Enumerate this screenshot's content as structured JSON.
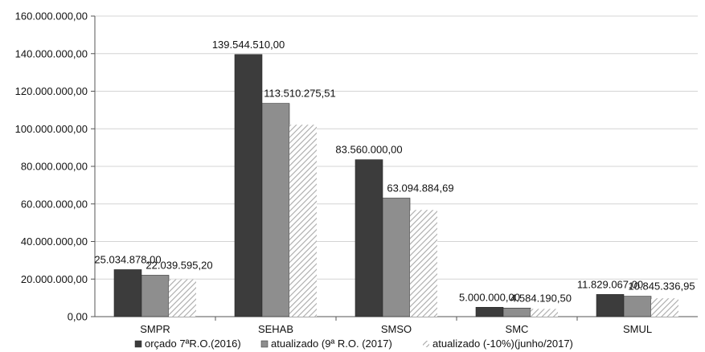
{
  "chart_data": {
    "type": "bar",
    "categories": [
      "SMPR",
      "SEHAB",
      "SMSO",
      "SMC",
      "SMUL"
    ],
    "series": [
      {
        "name": "orçado 7ªR.O.(2016)",
        "values": [
          25034878.0,
          139544510.0,
          83560000.0,
          5000000.0,
          11829067.0
        ],
        "color": "#3c3c3c",
        "pattern": "solid"
      },
      {
        "name": "atualizado (9ª R.O. (2017)",
        "values": [
          22039595.2,
          113510275.51,
          63094884.69,
          4584190.5,
          10845336.95
        ],
        "color": "#8e8e8e",
        "pattern": "solid"
      },
      {
        "name": "atualizado (-10%)(junho/2017)",
        "values": [
          19835635.68,
          102159247.96,
          56785396.22,
          4125771.45,
          9760803.26
        ],
        "color": "#bdbdbd",
        "pattern": "hatched"
      }
    ],
    "data_labels": [
      [
        "25.034.878,00",
        "22.039.595,20",
        ""
      ],
      [
        "139.544.510,00",
        "113.510.275,51",
        ""
      ],
      [
        "83.560.000,00",
        "63.094.884,69",
        ""
      ],
      [
        "5.000.000,00",
        "4.584.190,50",
        ""
      ],
      [
        "11.829.067,00",
        "10.845.336,95",
        ""
      ]
    ],
    "ylim": [
      0,
      160000000
    ],
    "yticks": [
      0,
      20000000,
      40000000,
      60000000,
      80000000,
      100000000,
      120000000,
      140000000,
      160000000
    ],
    "ytick_labels": [
      "0,00",
      "20.000.000,00",
      "40.000.000,00",
      "60.000.000,00",
      "80.000.000,00",
      "100.000.000,00",
      "120.000.000,00",
      "140.000.000,00",
      "160.000.000,00"
    ],
    "grid": true,
    "legend_position": "bottom"
  }
}
